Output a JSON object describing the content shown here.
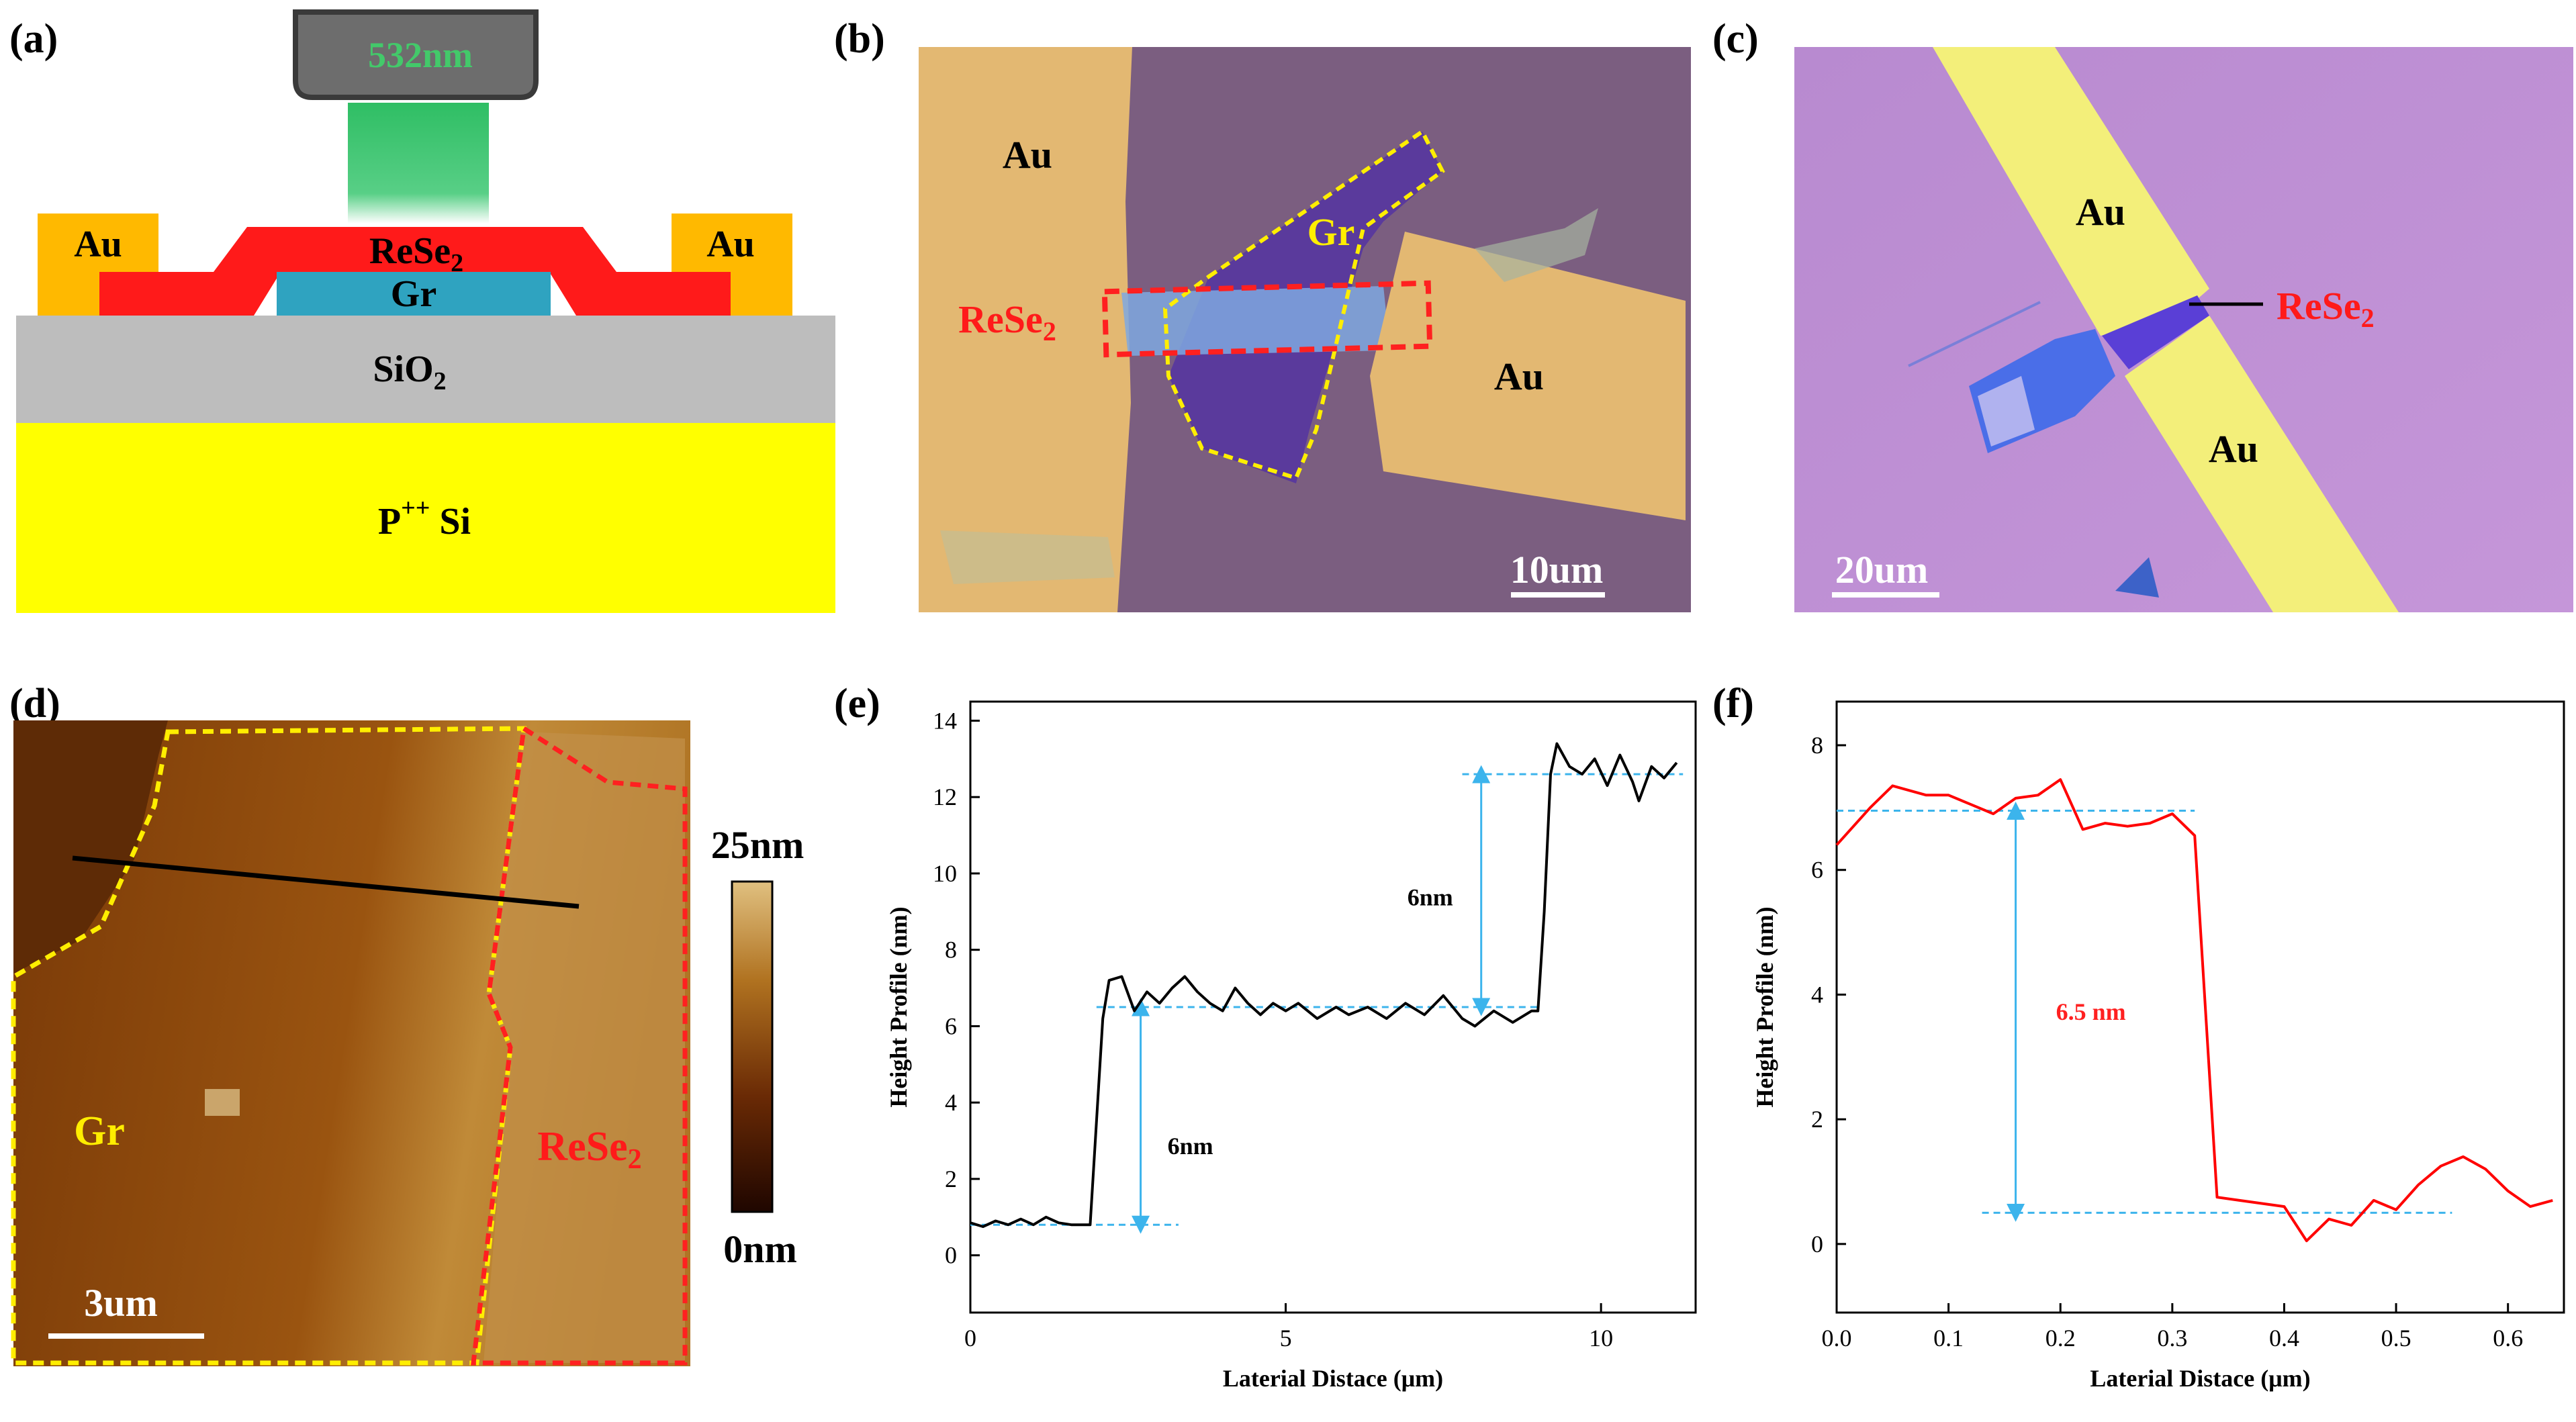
{
  "panels": {
    "a": {
      "label": "(a)",
      "laser": "532nm",
      "au_left": "Au",
      "au_right": "Au",
      "rese2": "ReSe",
      "rese2_sub": "2",
      "gr": "Gr",
      "sio2": "SiO",
      "sio2_sub": "2",
      "si_pre": "P",
      "si_sup": "++",
      "si_post": " Si",
      "colors": {
        "laser_head": "#6d6d6d",
        "laser_text": "#43c96a",
        "beam": "#35c06a",
        "au": "#ffb900",
        "rese2": "#ff1a1a",
        "gr": "#2fa3c0",
        "sio2": "#bdbdbd",
        "si": "#ffff00"
      }
    },
    "b": {
      "label": "(b)",
      "au_top": "Au",
      "au_right": "Au",
      "gr": "Gr",
      "rese2": "ReSe",
      "rese2_sub": "2",
      "scalebar": "10um"
    },
    "c": {
      "label": "(c)",
      "au_top": "Au",
      "au_bottom": "Au",
      "rese2": "ReSe",
      "rese2_sub": "2",
      "scalebar": "20um"
    },
    "d": {
      "label": "(d)",
      "gr": "Gr",
      "rese2": "ReSe",
      "rese2_sub": "2",
      "scalebar": "3um",
      "colorbar_max": "25nm",
      "colorbar_min": "0nm"
    }
  },
  "chart_data": [
    {
      "panel": "(e)",
      "type": "line",
      "xlabel": "Laterial Distace (μm)",
      "ylabel": "Height Profile (nm)",
      "xlim": [
        0,
        11.5
      ],
      "ylim": [
        -1.5,
        14.5
      ],
      "xticks": [
        0,
        5,
        10
      ],
      "yticks": [
        0,
        2,
        4,
        6,
        8,
        10,
        12,
        14
      ],
      "series": [
        {
          "color": "#000000",
          "points": [
            [
              0.0,
              0.85
            ],
            [
              0.2,
              0.75
            ],
            [
              0.4,
              0.9
            ],
            [
              0.6,
              0.8
            ],
            [
              0.8,
              0.95
            ],
            [
              1.0,
              0.8
            ],
            [
              1.2,
              1.0
            ],
            [
              1.4,
              0.85
            ],
            [
              1.6,
              0.8
            ],
            [
              1.9,
              0.8
            ],
            [
              2.0,
              3.5
            ],
            [
              2.1,
              6.2
            ],
            [
              2.2,
              7.2
            ],
            [
              2.4,
              7.3
            ],
            [
              2.6,
              6.4
            ],
            [
              2.8,
              6.9
            ],
            [
              3.0,
              6.6
            ],
            [
              3.2,
              7.0
            ],
            [
              3.4,
              7.3
            ],
            [
              3.6,
              6.9
            ],
            [
              3.8,
              6.6
            ],
            [
              4.0,
              6.4
            ],
            [
              4.2,
              7.0
            ],
            [
              4.4,
              6.6
            ],
            [
              4.6,
              6.3
            ],
            [
              4.8,
              6.6
            ],
            [
              5.0,
              6.4
            ],
            [
              5.2,
              6.6
            ],
            [
              5.5,
              6.2
            ],
            [
              5.8,
              6.5
            ],
            [
              6.0,
              6.3
            ],
            [
              6.3,
              6.5
            ],
            [
              6.6,
              6.2
            ],
            [
              6.9,
              6.6
            ],
            [
              7.2,
              6.3
            ],
            [
              7.5,
              6.8
            ],
            [
              7.8,
              6.2
            ],
            [
              8.0,
              6.0
            ],
            [
              8.3,
              6.4
            ],
            [
              8.6,
              6.1
            ],
            [
              8.9,
              6.4
            ],
            [
              9.0,
              6.4
            ],
            [
              9.1,
              9.0
            ],
            [
              9.2,
              12.6
            ],
            [
              9.3,
              13.4
            ],
            [
              9.5,
              12.8
            ],
            [
              9.7,
              12.6
            ],
            [
              9.9,
              13.0
            ],
            [
              10.1,
              12.3
            ],
            [
              10.3,
              13.1
            ],
            [
              10.5,
              12.4
            ],
            [
              10.6,
              11.9
            ],
            [
              10.8,
              12.8
            ],
            [
              11.0,
              12.5
            ],
            [
              11.2,
              12.9
            ]
          ]
        }
      ],
      "guides": [
        {
          "y": 0.8,
          "x": [
            0,
            3.3
          ]
        },
        {
          "y": 6.5,
          "x": [
            2.0,
            9.0
          ]
        },
        {
          "y": 12.6,
          "x": [
            7.8,
            11.3
          ]
        }
      ],
      "arrows": [
        {
          "x": 2.7,
          "y": [
            0.8,
            6.5
          ],
          "label": "6nm"
        },
        {
          "x": 8.1,
          "y": [
            6.5,
            12.6
          ],
          "label": "6nm"
        }
      ]
    },
    {
      "panel": "(f)",
      "type": "line",
      "xlabel": "Laterial Distace (μm)",
      "ylabel": "Height Profile (nm)",
      "xlim": [
        0,
        0.65
      ],
      "ylim": [
        -1.1,
        8.7
      ],
      "xticks": [
        0.0,
        0.1,
        0.2,
        0.3,
        0.4,
        0.5,
        0.6
      ],
      "yticks": [
        0,
        2,
        4,
        6,
        8
      ],
      "series": [
        {
          "color": "#ff0000",
          "points": [
            [
              0.0,
              6.4
            ],
            [
              0.03,
              7.0
            ],
            [
              0.05,
              7.35
            ],
            [
              0.08,
              7.2
            ],
            [
              0.1,
              7.2
            ],
            [
              0.12,
              7.05
            ],
            [
              0.14,
              6.9
            ],
            [
              0.16,
              7.15
            ],
            [
              0.18,
              7.2
            ],
            [
              0.2,
              7.45
            ],
            [
              0.22,
              6.65
            ],
            [
              0.24,
              6.75
            ],
            [
              0.26,
              6.7
            ],
            [
              0.28,
              6.75
            ],
            [
              0.3,
              6.9
            ],
            [
              0.32,
              6.55
            ],
            [
              0.34,
              0.75
            ],
            [
              0.36,
              0.7
            ],
            [
              0.38,
              0.65
            ],
            [
              0.4,
              0.6
            ],
            [
              0.42,
              0.05
            ],
            [
              0.44,
              0.4
            ],
            [
              0.46,
              0.3
            ],
            [
              0.48,
              0.7
            ],
            [
              0.5,
              0.55
            ],
            [
              0.52,
              0.95
            ],
            [
              0.54,
              1.25
            ],
            [
              0.56,
              1.4
            ],
            [
              0.58,
              1.2
            ],
            [
              0.6,
              0.85
            ],
            [
              0.62,
              0.6
            ],
            [
              0.64,
              0.7
            ]
          ]
        }
      ],
      "guides": [
        {
          "y": 6.95,
          "x": [
            0.0,
            0.32
          ]
        },
        {
          "y": 0.5,
          "x": [
            0.13,
            0.55
          ]
        }
      ],
      "arrows": [
        {
          "x": 0.16,
          "y": [
            0.5,
            6.95
          ],
          "label": "6.5 nm"
        }
      ]
    }
  ],
  "labels": {
    "e": "(e)",
    "f": "(f)"
  },
  "colors": {
    "guide": "#3cb4ec",
    "gr_outline": "#ffee00",
    "rese2_outline": "#ff2020"
  }
}
